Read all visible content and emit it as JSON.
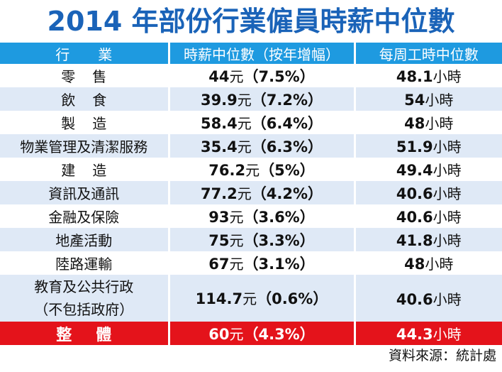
{
  "title": "2014 年部份行業僱員時薪中位數",
  "headers": {
    "industry": "行　　業",
    "hourly_wage": "時薪中位數（按年增幅）",
    "weekly_hours": "每周工時中位數"
  },
  "rows": [
    {
      "industry": "零售",
      "spread": true,
      "wage": "44",
      "wage_unit": "元",
      "growth": "（7.5%）",
      "hours": "48.1",
      "hours_unit": "小時"
    },
    {
      "industry": "飲食",
      "spread": true,
      "wage": "39.9",
      "wage_unit": "元",
      "growth": "（7.2%）",
      "hours": "54",
      "hours_unit": "小時"
    },
    {
      "industry": "製造",
      "spread": true,
      "wage": "58.4",
      "wage_unit": "元",
      "growth": "（6.4%）",
      "hours": "48",
      "hours_unit": "小時"
    },
    {
      "industry": "物業管理及清潔服務",
      "spread": false,
      "wage": "35.4",
      "wage_unit": "元",
      "growth": "（6.3%）",
      "hours": "51.9",
      "hours_unit": "小時"
    },
    {
      "industry": "建造",
      "spread": true,
      "wage": "76.2",
      "wage_unit": "元",
      "growth": "（5%）",
      "hours": "49.4",
      "hours_unit": "小時"
    },
    {
      "industry": "資訊及通訊",
      "spread": false,
      "wage": "77.2",
      "wage_unit": "元",
      "growth": "（4.2%）",
      "hours": "40.6",
      "hours_unit": "小時"
    },
    {
      "industry": "金融及保險",
      "spread": false,
      "wage": "93",
      "wage_unit": "元",
      "growth": "（3.6%）",
      "hours": "40.6",
      "hours_unit": "小時"
    },
    {
      "industry": "地產活動",
      "spread": false,
      "wage": "75",
      "wage_unit": "元",
      "growth": "（3.3%）",
      "hours": "41.8",
      "hours_unit": "小時"
    },
    {
      "industry": "陸路運輸",
      "spread": false,
      "wage": "67",
      "wage_unit": "元",
      "growth": "（3.1%）",
      "hours": "48",
      "hours_unit": "小時"
    },
    {
      "industry": "教育及公共行政",
      "industry_line2": "（不包括政府）",
      "spread": false,
      "wage": "114.7",
      "wage_unit": "元",
      "growth": "（0.6%）",
      "hours": "40.6",
      "hours_unit": "小時"
    }
  ],
  "total": {
    "industry": "整體",
    "wage": "60",
    "wage_unit": "元",
    "growth": "（4.3%）",
    "hours": "44.3",
    "hours_unit": "小時"
  },
  "source": "資料來源：統計處",
  "colors": {
    "title": "#1a63b8",
    "header_bg": "#1e9ae0",
    "stripe_bg": "#dfe9f6",
    "total_bg": "#e4131b"
  }
}
